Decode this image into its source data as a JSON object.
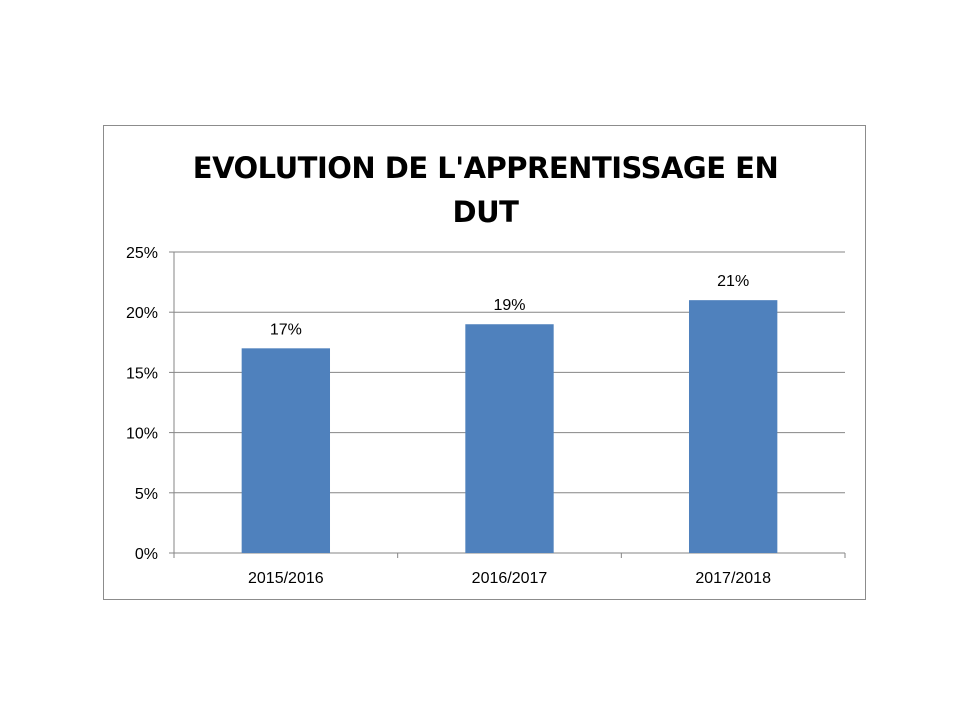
{
  "chart_data": {
    "type": "bar",
    "title": "EVOLUTION DE L'APPRENTISSAGE EN DUT",
    "categories": [
      "2015/2016",
      "2016/2017",
      "2017/2018"
    ],
    "values": [
      17,
      19,
      21
    ],
    "data_labels": [
      "17%",
      "19%",
      "21%"
    ],
    "ylim": [
      0,
      25
    ],
    "yticks": [
      0,
      5,
      10,
      15,
      20,
      25
    ],
    "ytick_labels": [
      "0%",
      "5%",
      "10%",
      "15%",
      "20%",
      "25%"
    ],
    "xlabel": "",
    "ylabel": "",
    "grid": true,
    "legend": "none",
    "bar_color": "#4f81bd",
    "grid_color": "#868686"
  }
}
